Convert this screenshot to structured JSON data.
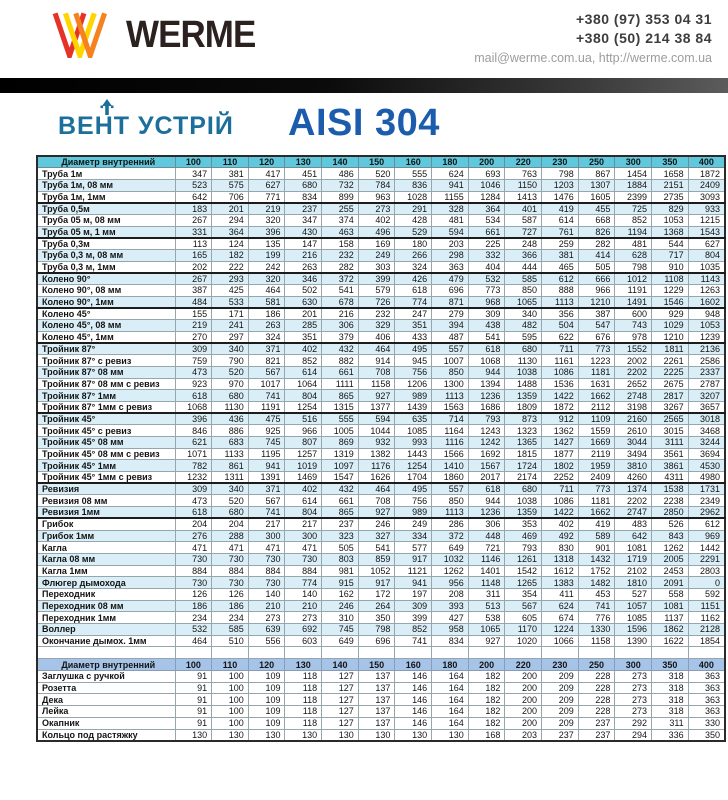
{
  "header": {
    "logo_text": "WERME",
    "phone1": "+380 (97) 353 04 31",
    "phone2": "+380 (50) 214 38 84",
    "contacts_line": "mail@werme.com.ua, http://werme.com.ua",
    "brand": "ВЕНТ УСТРІЙ",
    "title": "AISI 304"
  },
  "colors": {
    "header_cyan": "#5fc8dc",
    "row_shade_blue": "#d9eef6",
    "header_periwinkle": "#a6c3e8",
    "brand_teal": "#1d6f9b",
    "title_blue": "#1c5cad",
    "logo_red": "#e6332a",
    "logo_orange": "#f5821f",
    "logo_yellow": "#ffd500"
  },
  "price_table": {
    "corner_label": "Диаметр внутренний",
    "columns": [
      "100",
      "110",
      "120",
      "130",
      "140",
      "150",
      "160",
      "180",
      "200",
      "220",
      "230",
      "250",
      "300",
      "350",
      "400"
    ],
    "rows": [
      {
        "label": "Труба 1м",
        "values": [
          347,
          381,
          417,
          451,
          486,
          520,
          555,
          624,
          693,
          763,
          798,
          867,
          1454,
          1658,
          1872
        ]
      },
      {
        "label": "Труба 1м, 08 мм",
        "values": [
          523,
          575,
          627,
          680,
          732,
          784,
          836,
          941,
          1046,
          1150,
          1203,
          1307,
          1884,
          2151,
          2409
        ]
      },
      {
        "label": "Труба 1м, 1мм",
        "values": [
          642,
          706,
          771,
          834,
          899,
          963,
          1028,
          1155,
          1284,
          1413,
          1476,
          1605,
          2399,
          2735,
          3093
        ],
        "group_end": true
      },
      {
        "label": "Труба 0,5м",
        "values": [
          183,
          201,
          219,
          237,
          255,
          273,
          291,
          328,
          364,
          401,
          419,
          455,
          725,
          829,
          933
        ]
      },
      {
        "label": "Труба 05 м, 08 мм",
        "values": [
          267,
          294,
          320,
          347,
          374,
          402,
          428,
          481,
          534,
          587,
          614,
          668,
          852,
          1053,
          1215
        ]
      },
      {
        "label": "Труба 05 м, 1 мм",
        "values": [
          331,
          364,
          396,
          430,
          463,
          496,
          529,
          594,
          661,
          727,
          761,
          826,
          1194,
          1368,
          1543
        ],
        "group_end": true
      },
      {
        "label": "Труба 0,3м",
        "values": [
          113,
          124,
          135,
          147,
          158,
          169,
          180,
          203,
          225,
          248,
          259,
          282,
          481,
          544,
          627
        ]
      },
      {
        "label": "Труба 0,3 м, 08 мм",
        "values": [
          165,
          182,
          199,
          216,
          232,
          249,
          266,
          298,
          332,
          366,
          381,
          414,
          628,
          717,
          804
        ]
      },
      {
        "label": "Труба 0,3 м, 1мм",
        "values": [
          202,
          222,
          242,
          263,
          282,
          303,
          324,
          363,
          404,
          444,
          465,
          505,
          798,
          910,
          1035
        ],
        "group_end": true
      },
      {
        "label": "Колено 90°",
        "values": [
          267,
          293,
          320,
          346,
          372,
          399,
          426,
          479,
          532,
          585,
          612,
          666,
          1012,
          1108,
          1143
        ]
      },
      {
        "label": "Колено 90°, 08 мм",
        "values": [
          387,
          425,
          464,
          502,
          541,
          579,
          618,
          696,
          773,
          850,
          888,
          966,
          1191,
          1229,
          1263
        ]
      },
      {
        "label": "Колено 90°, 1мм",
        "values": [
          484,
          533,
          581,
          630,
          678,
          726,
          774,
          871,
          968,
          1065,
          1113,
          1210,
          1491,
          1546,
          1602
        ],
        "group_end": true
      },
      {
        "label": "Колено 45°",
        "values": [
          155,
          171,
          186,
          201,
          216,
          232,
          247,
          279,
          309,
          340,
          356,
          387,
          600,
          929,
          948
        ]
      },
      {
        "label": "Колено 45°, 08 мм",
        "values": [
          219,
          241,
          263,
          285,
          306,
          329,
          351,
          394,
          438,
          482,
          504,
          547,
          743,
          1029,
          1053
        ]
      },
      {
        "label": "Колено 45°, 1мм",
        "values": [
          270,
          297,
          324,
          351,
          379,
          406,
          433,
          487,
          541,
          595,
          622,
          676,
          978,
          1210,
          1239
        ],
        "group_end": true
      },
      {
        "label": "Тройник 87°",
        "values": [
          309,
          340,
          371,
          402,
          432,
          464,
          495,
          557,
          618,
          680,
          711,
          773,
          1552,
          1811,
          2136
        ]
      },
      {
        "label": "Тройник 87° с ревиз",
        "values": [
          759,
          790,
          821,
          852,
          882,
          914,
          945,
          1007,
          1068,
          1130,
          1161,
          1223,
          2002,
          2261,
          2586
        ]
      },
      {
        "label": "Тройник 87° 08 мм",
        "values": [
          473,
          520,
          567,
          614,
          661,
          708,
          756,
          850,
          944,
          1038,
          1086,
          1181,
          2202,
          2225,
          2337
        ]
      },
      {
        "label": "Тройник 87° 08 мм с ревиз",
        "values": [
          923,
          970,
          1017,
          1064,
          1111,
          1158,
          1206,
          1300,
          1394,
          1488,
          1536,
          1631,
          2652,
          2675,
          2787
        ]
      },
      {
        "label": "Тройник 87° 1мм",
        "values": [
          618,
          680,
          741,
          804,
          865,
          927,
          989,
          1113,
          1236,
          1359,
          1422,
          1662,
          2748,
          2817,
          3207
        ]
      },
      {
        "label": "Тройник 87° 1мм с ревиз",
        "values": [
          1068,
          1130,
          1191,
          1254,
          1315,
          1377,
          1439,
          1563,
          1686,
          1809,
          1872,
          2112,
          3198,
          3267,
          3657
        ],
        "group_end": true
      },
      {
        "label": "Тройник 45°",
        "values": [
          396,
          436,
          475,
          516,
          555,
          594,
          635,
          714,
          793,
          873,
          912,
          1109,
          2160,
          2565,
          3018
        ]
      },
      {
        "label": "Тройник 45° с ревиз",
        "values": [
          846,
          886,
          925,
          966,
          1005,
          1044,
          1085,
          1164,
          1243,
          1323,
          1362,
          1559,
          2610,
          3015,
          3468
        ]
      },
      {
        "label": "Тройник 45° 08 мм",
        "values": [
          621,
          683,
          745,
          807,
          869,
          932,
          993,
          1116,
          1242,
          1365,
          1427,
          1669,
          3044,
          3111,
          3244
        ]
      },
      {
        "label": "Тройник 45° 08 мм с ревиз",
        "values": [
          1071,
          1133,
          1195,
          1257,
          1319,
          1382,
          1443,
          1566,
          1692,
          1815,
          1877,
          2119,
          3494,
          3561,
          3694
        ]
      },
      {
        "label": "Тройник 45° 1мм",
        "values": [
          782,
          861,
          941,
          1019,
          1097,
          1176,
          1254,
          1410,
          1567,
          1724,
          1802,
          1959,
          3810,
          3861,
          4530
        ]
      },
      {
        "label": "Тройник 45° 1мм с ревиз",
        "values": [
          1232,
          1311,
          1391,
          1469,
          1547,
          1626,
          1704,
          1860,
          2017,
          2174,
          2252,
          2409,
          4260,
          4311,
          4980
        ],
        "group_end": true
      },
      {
        "label": "Ревизия",
        "values": [
          309,
          340,
          371,
          402,
          432,
          464,
          495,
          557,
          618,
          680,
          711,
          773,
          1374,
          1538,
          1731
        ]
      },
      {
        "label": "Ревизия 08 мм",
        "values": [
          473,
          520,
          567,
          614,
          661,
          708,
          756,
          850,
          944,
          1038,
          1086,
          1181,
          2202,
          2238,
          2349
        ]
      },
      {
        "label": "Ревизия 1мм",
        "values": [
          618,
          680,
          741,
          804,
          865,
          927,
          989,
          1113,
          1236,
          1359,
          1422,
          1662,
          2747,
          2850,
          2962
        ],
        "group_end": true
      },
      {
        "label": "Грибок",
        "values": [
          204,
          204,
          217,
          217,
          237,
          246,
          249,
          286,
          306,
          353,
          402,
          419,
          483,
          526,
          612
        ]
      },
      {
        "label": "Грибок 1мм",
        "values": [
          276,
          288,
          300,
          300,
          323,
          327,
          334,
          372,
          448,
          469,
          492,
          589,
          642,
          843,
          969
        ]
      },
      {
        "label": "Кагла",
        "values": [
          471,
          471,
          471,
          471,
          505,
          541,
          577,
          649,
          721,
          793,
          830,
          901,
          1081,
          1262,
          1442
        ]
      },
      {
        "label": "Кагла 08 мм",
        "values": [
          730,
          730,
          730,
          730,
          803,
          859,
          917,
          1032,
          1146,
          1261,
          1318,
          1432,
          1719,
          2005,
          2291
        ]
      },
      {
        "label": "Кагла 1мм",
        "values": [
          884,
          884,
          884,
          884,
          981,
          1052,
          1121,
          1262,
          1401,
          1542,
          1612,
          1752,
          2102,
          2453,
          2803
        ]
      },
      {
        "label": "Флюгер дымохода",
        "values": [
          730,
          730,
          730,
          774,
          915,
          917,
          941,
          956,
          1148,
          1265,
          1383,
          1482,
          1810,
          2091,
          0
        ]
      },
      {
        "label": "Переходник",
        "values": [
          126,
          126,
          140,
          140,
          162,
          172,
          197,
          208,
          311,
          354,
          411,
          453,
          527,
          558,
          592
        ]
      },
      {
        "label": "Переходник 08 мм",
        "values": [
          186,
          186,
          210,
          210,
          246,
          264,
          309,
          393,
          513,
          567,
          624,
          741,
          1057,
          1081,
          1151
        ]
      },
      {
        "label": "Переходник 1мм",
        "values": [
          234,
          234,
          273,
          273,
          310,
          350,
          399,
          427,
          538,
          605,
          674,
          776,
          1085,
          1137,
          1162
        ]
      },
      {
        "label": "Воллер",
        "values": [
          532,
          585,
          639,
          692,
          745,
          798,
          852,
          958,
          1065,
          1170,
          1224,
          1330,
          1596,
          1862,
          2128
        ]
      },
      {
        "label": "Окончание дымох. 1мм",
        "values": [
          464,
          510,
          556,
          603,
          649,
          696,
          741,
          834,
          927,
          1020,
          1066,
          1158,
          1390,
          1622,
          1854
        ]
      }
    ]
  },
  "accessory_table": {
    "corner_label": "Диаметр внутренний",
    "columns": [
      "100",
      "110",
      "120",
      "130",
      "140",
      "150",
      "160",
      "180",
      "200",
      "220",
      "230",
      "250",
      "300",
      "350",
      "400"
    ],
    "rows": [
      {
        "label": "Заглушка с ручкой",
        "values": [
          91,
          100,
          109,
          118,
          127,
          137,
          146,
          164,
          182,
          200,
          209,
          228,
          273,
          318,
          363
        ]
      },
      {
        "label": "Розетта",
        "values": [
          91,
          100,
          109,
          118,
          127,
          137,
          146,
          164,
          182,
          200,
          209,
          228,
          273,
          318,
          363
        ]
      },
      {
        "label": "Дека",
        "values": [
          91,
          100,
          109,
          118,
          127,
          137,
          146,
          164,
          182,
          200,
          209,
          228,
          273,
          318,
          363
        ]
      },
      {
        "label": "Лейка",
        "values": [
          91,
          100,
          109,
          118,
          127,
          137,
          146,
          164,
          182,
          200,
          209,
          228,
          273,
          318,
          363
        ]
      },
      {
        "label": "Окапник",
        "values": [
          91,
          100,
          109,
          118,
          127,
          137,
          146,
          164,
          182,
          200,
          209,
          237,
          292,
          311,
          330
        ]
      },
      {
        "label": "Кольцо под растяжку",
        "values": [
          130,
          130,
          130,
          130,
          130,
          130,
          130,
          130,
          168,
          203,
          237,
          237,
          294,
          336,
          350
        ]
      }
    ]
  }
}
